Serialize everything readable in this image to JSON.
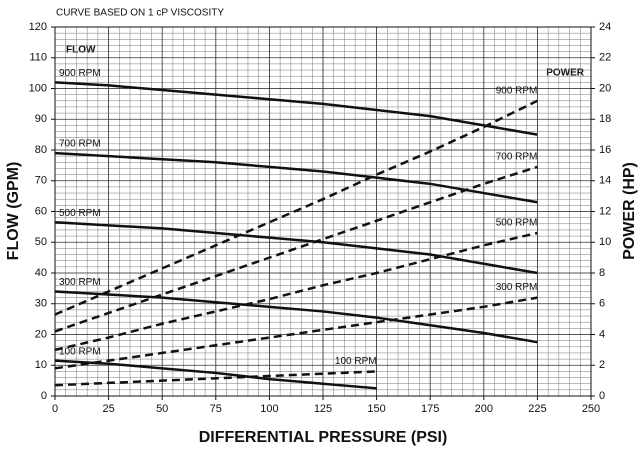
{
  "chart_data": {
    "type": "line",
    "title": "CURVE BASED ON 1 cP VISCOSITY",
    "x_label": "DIFFERENTIAL PRESSURE (PSI)",
    "y_label": "FLOW (GPM)",
    "y2_label": "POWER (HP)",
    "annotations": [
      "FLOW",
      "POWER"
    ],
    "xlim": [
      0,
      250
    ],
    "xticks": [
      0,
      25,
      50,
      75,
      100,
      125,
      150,
      175,
      200,
      225,
      250
    ],
    "ylim": [
      0,
      120
    ],
    "yticks": [
      0,
      10,
      20,
      30,
      40,
      50,
      60,
      70,
      80,
      90,
      100,
      110,
      120
    ],
    "y2lim": [
      0,
      24
    ],
    "y2ticks": [
      0,
      2,
      4,
      6,
      8,
      10,
      12,
      14,
      16,
      18,
      20,
      22,
      24
    ],
    "grid": true,
    "minor_grid": {
      "x": 5,
      "y": 2
    },
    "series": [
      {
        "name": "900 RPM",
        "color": "#111111",
        "axis": "y",
        "dashed": false,
        "x": [
          0,
          25,
          50,
          75,
          100,
          125,
          150,
          175,
          200,
          225
        ],
        "values": [
          102,
          101,
          99.5,
          98,
          96.5,
          95,
          93,
          91,
          88,
          85
        ]
      },
      {
        "name": "700 RPM",
        "color": "#111111",
        "axis": "y",
        "dashed": false,
        "x": [
          0,
          25,
          50,
          75,
          100,
          125,
          150,
          175,
          200,
          225
        ],
        "values": [
          79,
          78,
          77,
          76,
          74.5,
          73,
          71,
          69,
          66,
          63
        ]
      },
      {
        "name": "500 RPM",
        "color": "#111111",
        "axis": "y",
        "dashed": false,
        "x": [
          0,
          25,
          50,
          75,
          100,
          125,
          150,
          175,
          200,
          225
        ],
        "values": [
          56.5,
          55.5,
          54.5,
          53,
          51.5,
          50,
          48,
          46,
          43,
          40
        ]
      },
      {
        "name": "300 RPM",
        "color": "#111111",
        "axis": "y",
        "dashed": false,
        "x": [
          0,
          25,
          50,
          75,
          100,
          125,
          150,
          175,
          200,
          225
        ],
        "values": [
          34,
          33,
          32,
          30.5,
          29,
          27.5,
          25.5,
          23,
          20.5,
          17.5
        ]
      },
      {
        "name": "100 RPM",
        "color": "#111111",
        "axis": "y",
        "dashed": false,
        "x": [
          0,
          25,
          50,
          75,
          100,
          125,
          150
        ],
        "values": [
          11.5,
          10.5,
          9,
          7.5,
          5.5,
          4,
          2.5
        ]
      },
      {
        "name": "900 RPM",
        "color": "#111111",
        "axis": "y2",
        "dashed": true,
        "x": [
          0,
          25,
          50,
          75,
          100,
          125,
          150,
          175,
          200,
          225
        ],
        "values": [
          5.3,
          6.8,
          8.3,
          9.8,
          11.3,
          12.8,
          14.4,
          15.9,
          17.5,
          19.2
        ]
      },
      {
        "name": "700 RPM",
        "color": "#111111",
        "axis": "y2",
        "dashed": true,
        "x": [
          0,
          25,
          50,
          75,
          100,
          125,
          150,
          175,
          200,
          225
        ],
        "values": [
          4.2,
          5.4,
          6.6,
          7.8,
          9.0,
          10.2,
          11.4,
          12.6,
          13.8,
          14.9
        ]
      },
      {
        "name": "500 RPM",
        "color": "#111111",
        "axis": "y2",
        "dashed": true,
        "x": [
          0,
          25,
          50,
          75,
          100,
          125,
          150,
          175,
          200,
          225
        ],
        "values": [
          3.0,
          3.8,
          4.7,
          5.5,
          6.3,
          7.2,
          8.0,
          8.9,
          9.8,
          10.6
        ]
      },
      {
        "name": "300 RPM",
        "color": "#111111",
        "axis": "y2",
        "dashed": true,
        "x": [
          0,
          25,
          50,
          75,
          100,
          125,
          150,
          175,
          200,
          225
        ],
        "values": [
          1.8,
          2.3,
          2.8,
          3.3,
          3.8,
          4.3,
          4.8,
          5.3,
          5.8,
          6.4
        ]
      },
      {
        "name": "100 RPM",
        "color": "#111111",
        "axis": "y2",
        "dashed": true,
        "x": [
          0,
          25,
          50,
          75,
          100,
          125,
          150
        ],
        "values": [
          0.7,
          0.85,
          1.0,
          1.15,
          1.3,
          1.45,
          1.6
        ]
      }
    ]
  }
}
